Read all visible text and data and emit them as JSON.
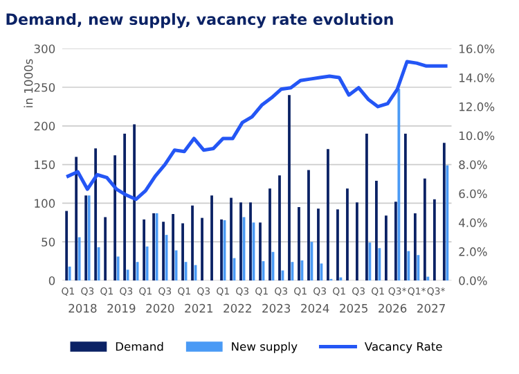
{
  "chart_data": {
    "type": "bar",
    "title": "Demand, new supply, vacancy rate evolution",
    "ylabel": "in 1000s",
    "categories": [
      "Q1",
      null,
      "Q3",
      null,
      "Q1",
      null,
      "Q3",
      null,
      "Q1",
      null,
      "Q3",
      null,
      "Q1",
      null,
      "Q3",
      null,
      "Q1",
      null,
      "Q3",
      null,
      "Q1",
      null,
      "Q3",
      null,
      "Q1",
      null,
      "Q3",
      null,
      "Q1",
      null,
      "Q3",
      null,
      "Q1",
      null,
      "Q3*",
      null,
      "Q1*",
      null,
      "Q3*",
      null
    ],
    "annotations": [
      "2018",
      "2019",
      "2020",
      "2021",
      "2022",
      "2023",
      "2024",
      "2025",
      "2026",
      "2027"
    ],
    "series": [
      {
        "name": "Demand",
        "color": "#0b2265",
        "values": [
          90,
          160,
          110,
          171,
          82,
          162,
          190,
          202,
          79,
          87,
          76,
          86,
          74,
          97,
          81,
          110,
          79,
          107,
          101,
          101,
          75,
          119,
          136,
          240,
          95,
          143,
          93,
          170,
          92,
          119,
          101,
          190,
          129,
          84,
          102,
          190,
          87,
          132,
          105,
          178
        ]
      },
      {
        "name": "New supply",
        "color": "#4a9af5",
        "values": [
          18,
          56,
          110,
          43,
          0,
          31,
          14,
          24,
          44,
          87,
          59,
          39,
          24,
          20,
          0,
          0,
          78,
          29,
          82,
          75,
          25,
          37,
          13,
          24,
          26,
          50,
          22,
          2,
          4,
          0,
          0,
          49,
          42,
          0,
          248,
          38,
          33,
          5,
          0,
          149
        ]
      },
      {
        "name": "Vacancy Rate",
        "color": "#2456f5",
        "type": "line",
        "axis": "y2",
        "values": [
          7.2,
          7.5,
          6.3,
          7.3,
          7.1,
          6.3,
          5.9,
          5.6,
          6.2,
          7.2,
          8.0,
          9.0,
          8.9,
          9.8,
          9.0,
          9.1,
          9.8,
          9.8,
          10.9,
          11.3,
          12.1,
          12.6,
          13.2,
          13.3,
          13.8,
          13.9,
          14.0,
          14.1,
          14.0,
          12.8,
          13.3,
          12.5,
          12.0,
          12.2,
          13.2,
          15.1,
          15.0,
          14.8,
          14.8,
          14.8
        ]
      }
    ],
    "ylim": [
      0,
      300
    ],
    "yticks": [
      0,
      50,
      100,
      150,
      200,
      250,
      300
    ],
    "y2lim": [
      0,
      16
    ],
    "y2ticks": [
      {
        "value": 0,
        "label": "0.0%"
      },
      {
        "value": 2,
        "label": "2.0%"
      },
      {
        "value": 4,
        "label": "4.0%"
      },
      {
        "value": 6,
        "label": "6.0%"
      },
      {
        "value": 8,
        "label": "8.0%"
      },
      {
        "value": 10,
        "label": "10.0%"
      },
      {
        "value": 12,
        "label": "12.0%"
      },
      {
        "value": 14,
        "label": "14.0%"
      },
      {
        "value": 16,
        "label": "16.0%"
      }
    ],
    "grid": "y",
    "legend": "bottom"
  }
}
